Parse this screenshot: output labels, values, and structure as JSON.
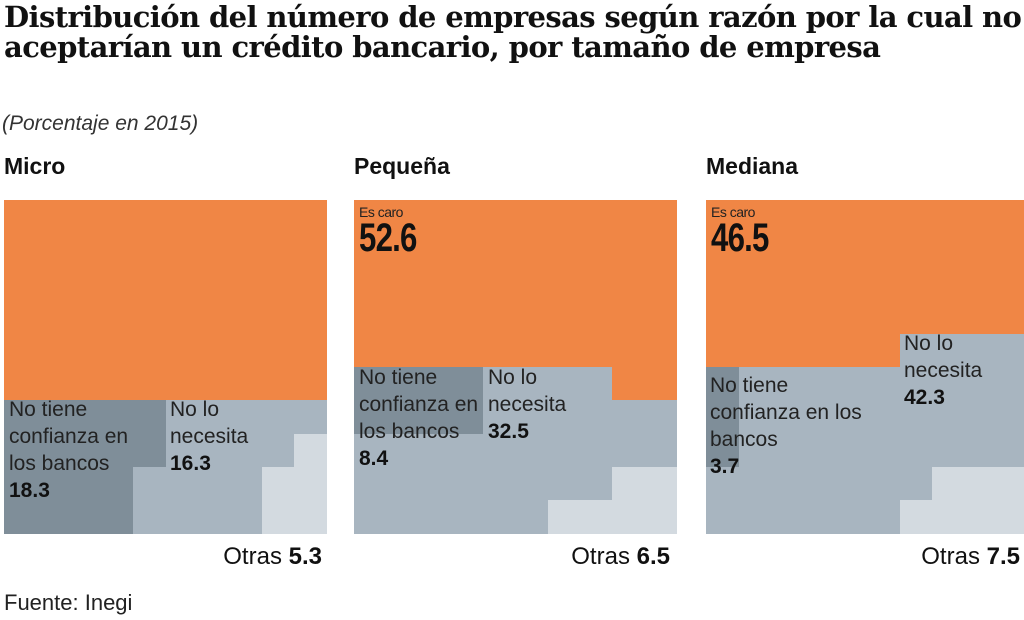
{
  "title": "Distribución del número de empresas según razón por la cual no aceptarían un crédito bancario, por tamaño de empresa",
  "subtitle": "(Porcentaje en 2015)",
  "source": "Fuente: Inegi",
  "colors": {
    "es_caro": "#f08645",
    "confianza": "#7f8e99",
    "necesita": "#a8b5c0",
    "otras": "#d3dae0"
  },
  "chart_data": {
    "type": "waffle",
    "title": "Distribución del número de empresas según razón por la cual no aceptarían un crédito bancario, por tamaño de empresa",
    "unit": "Porcentaje en 2015",
    "categories": [
      "Es caro",
      "No tiene confianza en los bancos",
      "No lo necesita",
      "Otras"
    ],
    "panels": [
      {
        "name": "Micro",
        "es_caro_label": "",
        "es_caro": null,
        "confianza_label": "No tiene confianza en los bancos",
        "confianza": "18.3",
        "necesita_label": "No lo necesita",
        "necesita": "16.3",
        "otras_label": "Otras",
        "otras": "5.3"
      },
      {
        "name": "Pequeña",
        "es_caro_label": "Es caro",
        "es_caro": "52.6",
        "confianza_label": "No tiene confianza en los bancos",
        "confianza": "8.4",
        "necesita_label": "No lo necesita",
        "necesita": "32.5",
        "otras_label": "Otras",
        "otras": "6.5"
      },
      {
        "name": "Mediana",
        "es_caro_label": "Es caro",
        "es_caro": "46.5",
        "confianza_label": "No tiene confianza en los bancos",
        "confianza": "3.7",
        "necesita_label": "No lo necesita",
        "necesita": "42.3",
        "otras_label": "Otras",
        "otras": "7.5"
      }
    ]
  }
}
